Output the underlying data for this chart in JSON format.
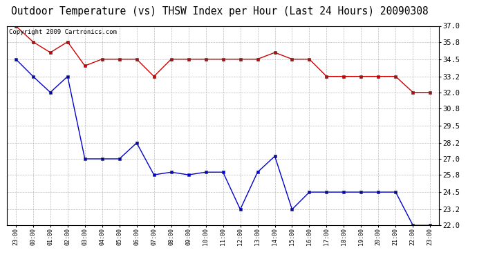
{
  "title": "Outdoor Temperature (vs) THSW Index per Hour (Last 24 Hours) 20090308",
  "copyright": "Copyright 2009 Cartronics.com",
  "x_labels": [
    "23:00",
    "00:00",
    "01:00",
    "02:00",
    "03:00",
    "04:00",
    "05:00",
    "06:00",
    "07:00",
    "08:00",
    "09:00",
    "10:00",
    "11:00",
    "12:00",
    "13:00",
    "14:00",
    "15:00",
    "16:00",
    "17:00",
    "18:00",
    "19:00",
    "20:00",
    "21:00",
    "22:00",
    "23:00"
  ],
  "red_data": [
    37.0,
    35.8,
    35.0,
    35.8,
    34.0,
    34.5,
    34.5,
    34.5,
    33.2,
    34.5,
    34.5,
    34.5,
    34.5,
    34.5,
    34.5,
    35.0,
    34.5,
    34.5,
    33.2,
    33.2,
    33.2,
    33.2,
    33.2,
    32.0,
    32.0
  ],
  "blue_data": [
    34.5,
    33.2,
    32.0,
    33.2,
    27.0,
    27.0,
    27.0,
    28.2,
    25.8,
    26.0,
    25.8,
    26.0,
    26.0,
    23.2,
    26.0,
    27.2,
    23.2,
    24.5,
    24.5,
    24.5,
    24.5,
    24.5,
    24.5,
    22.0,
    22.0
  ],
  "ylim_min": 22.0,
  "ylim_max": 37.0,
  "yticks": [
    22.0,
    23.2,
    24.5,
    25.8,
    27.0,
    28.2,
    29.5,
    30.8,
    32.0,
    33.2,
    34.5,
    35.8,
    37.0
  ],
  "red_color": "#cc0000",
  "blue_color": "#0000cc",
  "bg_color": "#ffffff",
  "grid_color": "#aaaaaa",
  "title_fontsize": 10.5,
  "copyright_fontsize": 6.5,
  "tick_fontsize": 7.5,
  "xtick_fontsize": 6.0
}
